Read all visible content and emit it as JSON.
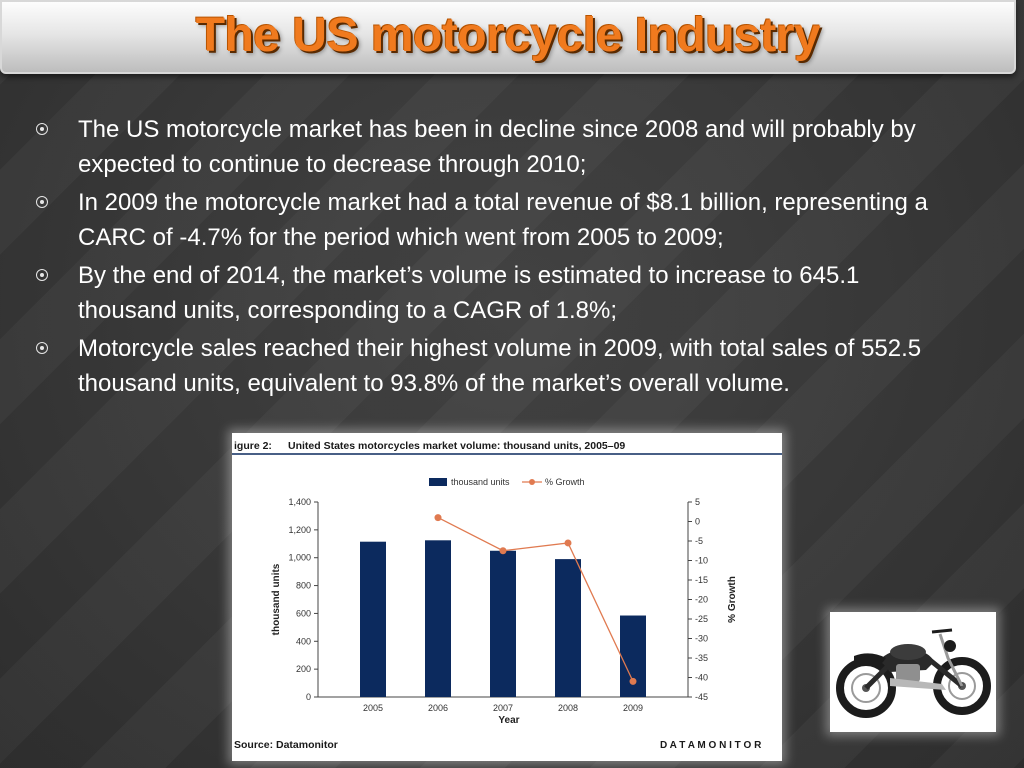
{
  "slide": {
    "title": "The US motorcycle Industry"
  },
  "bullets": [
    "The US motorcycle market has been in decline since 2008 and will probably by expected to continue to decrease through 2010;",
    "In 2009 the motorcycle market had a total revenue of $8.1 billion, representing a CARC of -4.7% for the period which went from 2005 to 2009;",
    "By the end of 2014, the market’s volume is estimated to increase to 645.1 thousand units, corresponding to a CAGR of 1.8%;",
    "Motorcycle sales reached their highest volume in 2009, with total sales of 552.5 thousand units, equivalent to 93.8% of the market’s overall volume."
  ],
  "figure": {
    "caption_prefix": "igure 2:",
    "caption_title": "United States motorcycles market volume: thousand units, 2005–09",
    "source": "Source: Datamonitor",
    "brand": "D A T A M O N I T O R"
  },
  "chart_data": {
    "type": "bar",
    "categories": [
      "2005",
      "2006",
      "2007",
      "2008",
      "2009"
    ],
    "series": [
      {
        "name": "thousand units",
        "type": "bar",
        "axis": "left",
        "color": "#0c2a5e",
        "values": [
          1115,
          1125,
          1050,
          990,
          585
        ]
      },
      {
        "name": "% Growth",
        "type": "line",
        "axis": "right",
        "color": "#e07a50",
        "values": [
          null,
          1,
          -7.5,
          -5.5,
          -41
        ]
      }
    ],
    "xlabel": "Year",
    "ylabel": "thousand units",
    "y2label": "% Growth",
    "ylim": [
      0,
      1400
    ],
    "y_ticks": [
      "0",
      "200",
      "400",
      "600",
      "800",
      "1,000",
      "1,200",
      "1,400"
    ],
    "y2lim": [
      -45,
      5
    ],
    "y2_ticks": [
      "5",
      "0",
      "-5",
      "-10",
      "-15",
      "-20",
      "-25",
      "-30",
      "-35",
      "-40",
      "-45"
    ],
    "grid": false,
    "legend": "top-center"
  },
  "photo": {
    "icon": "motorcycle-photo"
  }
}
